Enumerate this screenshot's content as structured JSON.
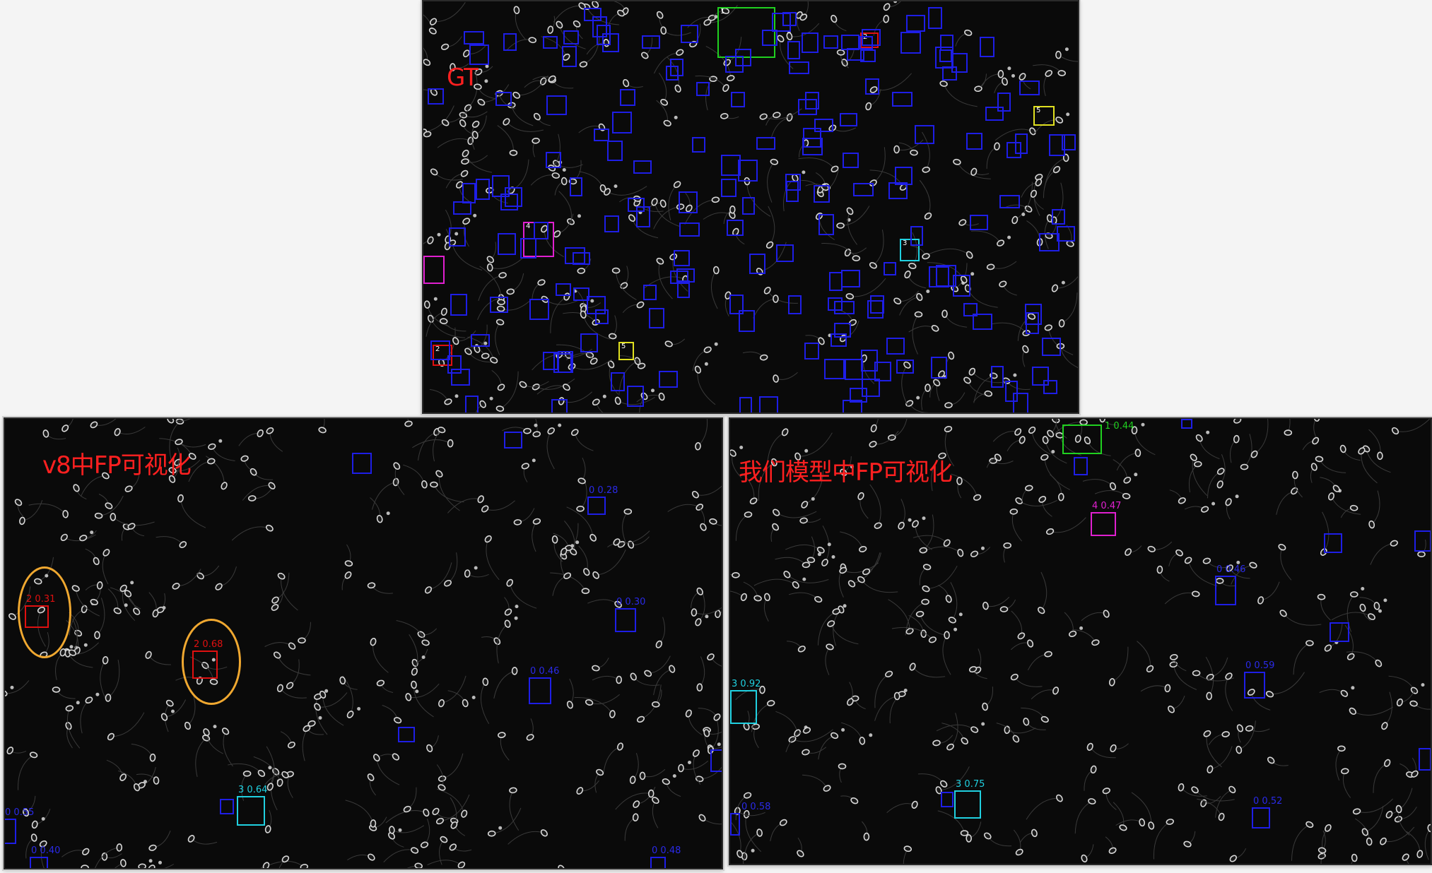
{
  "panels": {
    "gt": {
      "title": "GT",
      "classes": {
        "0": "#1e1ee6",
        "1": "#20d020",
        "2": "#e01010",
        "3": "#20d0e0",
        "4": "#e020d0",
        "5": "#e0e020"
      }
    },
    "v8": {
      "title": "v8中FP可视化",
      "detections": [
        {
          "cls": "2",
          "conf": "0.31"
        },
        {
          "cls": "2",
          "conf": "0.68"
        },
        {
          "cls": "3",
          "conf": "0.64"
        },
        {
          "cls": "0",
          "conf": "0.28"
        },
        {
          "cls": "0",
          "conf": "0.30"
        },
        {
          "cls": "0",
          "conf": "0.46"
        },
        {
          "cls": "0",
          "conf": "0.55"
        },
        {
          "cls": "0",
          "conf": "0.40"
        },
        {
          "cls": "0",
          "conf": "0.48"
        }
      ]
    },
    "ours": {
      "title": "我们模型中FP可视化",
      "detections": [
        {
          "cls": "4",
          "conf": "0.47"
        },
        {
          "cls": "3",
          "conf": "0.92"
        },
        {
          "cls": "3",
          "conf": "0.75"
        },
        {
          "cls": "1",
          "conf": "0.44"
        },
        {
          "cls": "0",
          "conf": "0.46"
        },
        {
          "cls": "0",
          "conf": "0.59"
        },
        {
          "cls": "0",
          "conf": "0.52"
        },
        {
          "cls": "0",
          "conf": "0.58"
        }
      ]
    }
  }
}
